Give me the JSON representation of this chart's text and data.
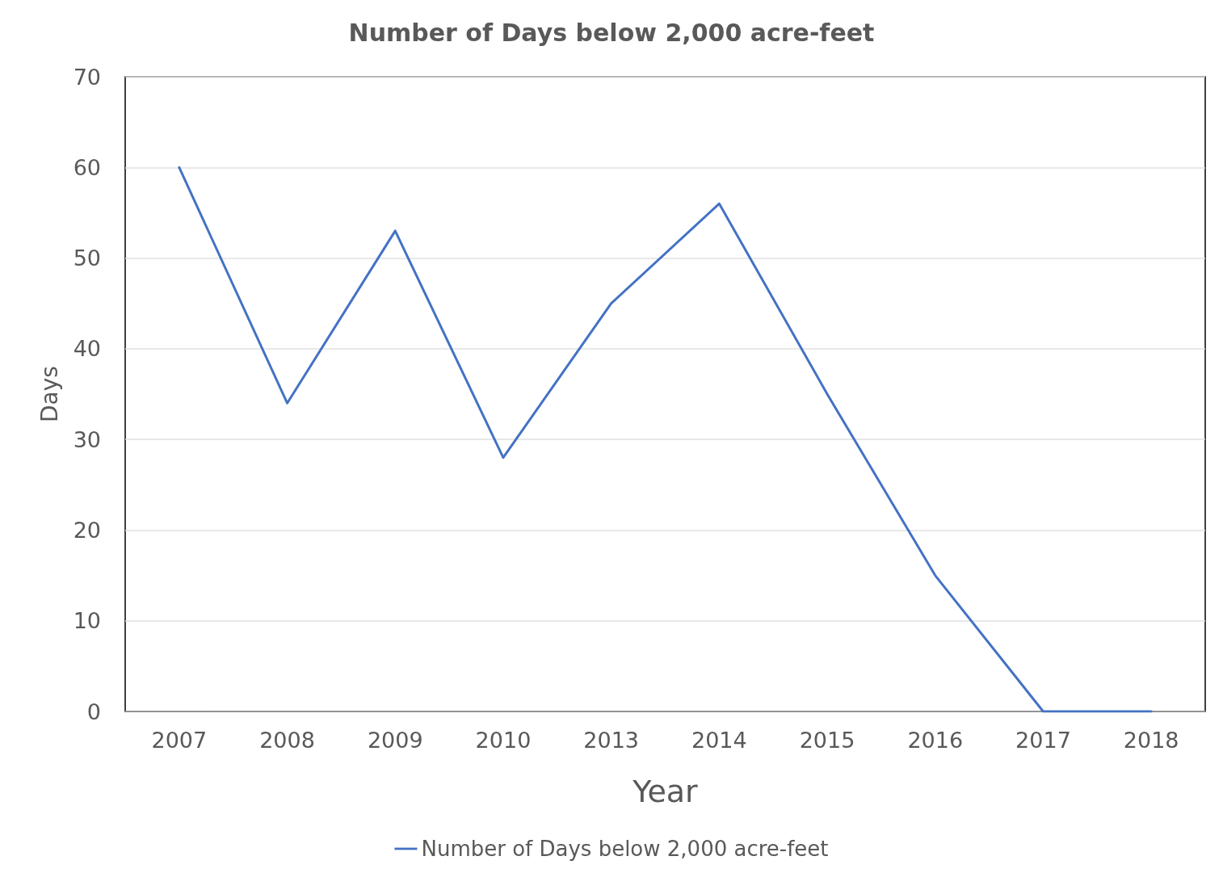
{
  "chart_data": {
    "type": "line",
    "title": "Number of Days below 2,000 acre-feet",
    "xlabel": "Year",
    "ylabel": "Days",
    "categories": [
      "2007",
      "2008",
      "2009",
      "2010",
      "2013",
      "2014",
      "2015",
      "2016",
      "2017",
      "2018"
    ],
    "series": [
      {
        "name": "Number of Days below 2,000 acre-feet",
        "color": "#4472c4",
        "values": [
          60,
          34,
          53,
          28,
          45,
          56,
          35,
          15,
          0,
          0
        ]
      }
    ],
    "ylim": [
      0,
      70
    ],
    "yticks": [
      0,
      10,
      20,
      30,
      40,
      50,
      60,
      70
    ],
    "grid": "y",
    "legend": "bottom",
    "marker": "none"
  }
}
